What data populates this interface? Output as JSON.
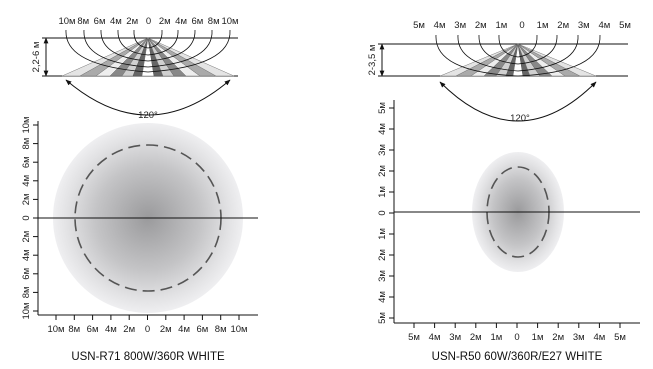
{
  "diagrams": [
    {
      "model": "USN-R71 800W/360R WHITE",
      "height_label": "2,2-6 м",
      "angle_label": "120°",
      "top_ticks": [
        "10м",
        "8м",
        "6м",
        "4м",
        "2м",
        "0",
        "2м",
        "4м",
        "6м",
        "8м",
        "10м"
      ],
      "side_ticks": [
        "10м",
        "8м",
        "6м",
        "4м",
        "2м",
        "0",
        "2м",
        "4м",
        "6м",
        "8м",
        "10м"
      ],
      "bottom_ticks": [
        "10м",
        "8м",
        "6м",
        "4м",
        "2м",
        "0",
        "2м",
        "4м",
        "6м",
        "8м",
        "10м"
      ]
    },
    {
      "model": "USN-R50 60W/360R/E27 WHITE",
      "height_label": "2-3,5 м",
      "angle_label": "120°",
      "top_ticks": [
        "5м",
        "4м",
        "3м",
        "2м",
        "1м",
        "0",
        "1м",
        "2м",
        "3м",
        "4м",
        "5м"
      ],
      "side_ticks": [
        "5м",
        "4м",
        "3м",
        "2м",
        "1м",
        "0",
        "1м",
        "2м",
        "3м",
        "4м",
        "5м"
      ],
      "bottom_ticks": [
        "5м",
        "4м",
        "3м",
        "2м",
        "1м",
        "0",
        "1м",
        "2м",
        "3м",
        "4м",
        "5м"
      ]
    }
  ]
}
